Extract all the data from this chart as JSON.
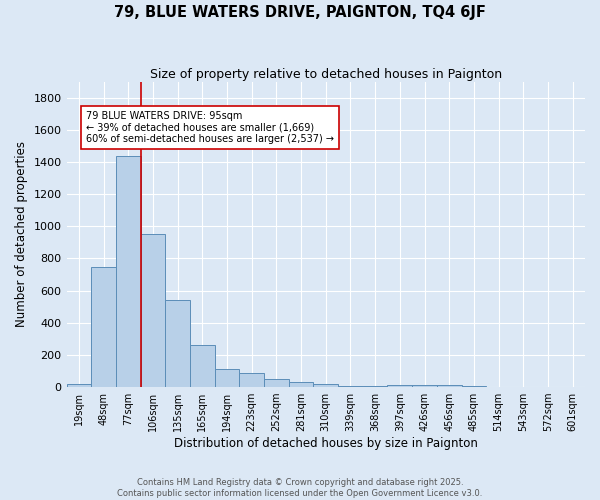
{
  "title": "79, BLUE WATERS DRIVE, PAIGNTON, TQ4 6JF",
  "subtitle": "Size of property relative to detached houses in Paignton",
  "xlabel": "Distribution of detached houses by size in Paignton",
  "ylabel": "Number of detached properties",
  "bar_labels": [
    "19sqm",
    "48sqm",
    "77sqm",
    "106sqm",
    "135sqm",
    "165sqm",
    "194sqm",
    "223sqm",
    "252sqm",
    "281sqm",
    "310sqm",
    "339sqm",
    "368sqm",
    "397sqm",
    "426sqm",
    "456sqm",
    "485sqm",
    "514sqm",
    "543sqm",
    "572sqm",
    "601sqm"
  ],
  "bar_values": [
    20,
    745,
    1440,
    950,
    540,
    262,
    110,
    90,
    48,
    30,
    22,
    5,
    5,
    14,
    10,
    10,
    5,
    3,
    2,
    1,
    1
  ],
  "bar_color": "#b8d0e8",
  "bar_edge_color": "#5b8db8",
  "background_color": "#dce8f5",
  "grid_color": "#ffffff",
  "vline_color": "#cc0000",
  "annotation_text": "79 BLUE WATERS DRIVE: 95sqm\n← 39% of detached houses are smaller (1,669)\n60% of semi-detached houses are larger (2,537) →",
  "annotation_box_facecolor": "#ffffff",
  "annotation_box_edge": "#cc0000",
  "ylim": [
    0,
    1900
  ],
  "yticks": [
    0,
    200,
    400,
    600,
    800,
    1000,
    1200,
    1400,
    1600,
    1800
  ],
  "footer_line1": "Contains HM Land Registry data © Crown copyright and database right 2025.",
  "footer_line2": "Contains public sector information licensed under the Open Government Licence v3.0."
}
